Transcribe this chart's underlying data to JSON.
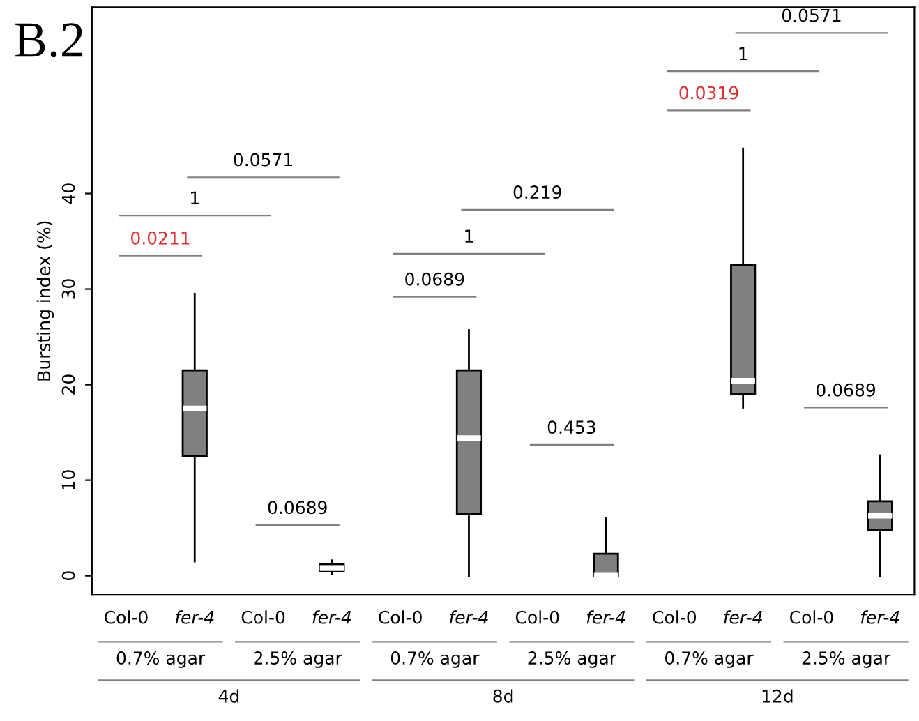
{
  "chart_data": {
    "type": "box",
    "title": "B.2",
    "ylabel": "Bursting index (%)",
    "categories": [
      "Col-0",
      "fer-4",
      "Col-0",
      "fer-4",
      "Col-0",
      "fer-4",
      "Col-0",
      "fer-4",
      "Col-0",
      "fer-4",
      "Col-0",
      "fer-4"
    ],
    "boxes": [
      null,
      {
        "low": 1.5,
        "q1": 12.5,
        "median": 17.5,
        "q3": 21.5,
        "high": 29.5
      },
      null,
      {
        "low": 0.2,
        "q1": 0.5,
        "median": 0.8,
        "q3": 1.2,
        "high": 1.6
      },
      null,
      {
        "low": 0,
        "q1": 6.5,
        "median": 14.4,
        "q3": 21.5,
        "high": 25.7
      },
      null,
      {
        "low": 0,
        "q1": 0,
        "median": 0,
        "q3": 2.3,
        "high": 6
      },
      null,
      {
        "low": 17.6,
        "q1": 19,
        "median": 20.4,
        "q3": 32.5,
        "high": 44.7
      },
      null,
      {
        "low": 0,
        "q1": 4.8,
        "median": 6.3,
        "q3": 7.8,
        "high": 12.6
      }
    ],
    "color": "#808080",
    "ylim": [
      -2,
      59.5
    ],
    "yticks": [
      0,
      10,
      20,
      30,
      40
    ],
    "annotations": [
      "0.0211",
      "1",
      "0.0571",
      "0.0689",
      "0.0689",
      "1",
      "0.219",
      "0.453",
      "0.0319",
      "1",
      "0.0571",
      "0.0689",
      "0.7% agar",
      "2.5% agar",
      "0.7% agar",
      "2.5% agar",
      "0.7% agar",
      "2.5% agar",
      "4d",
      "8d",
      "12d"
    ],
    "grid": false,
    "legend": false
  }
}
